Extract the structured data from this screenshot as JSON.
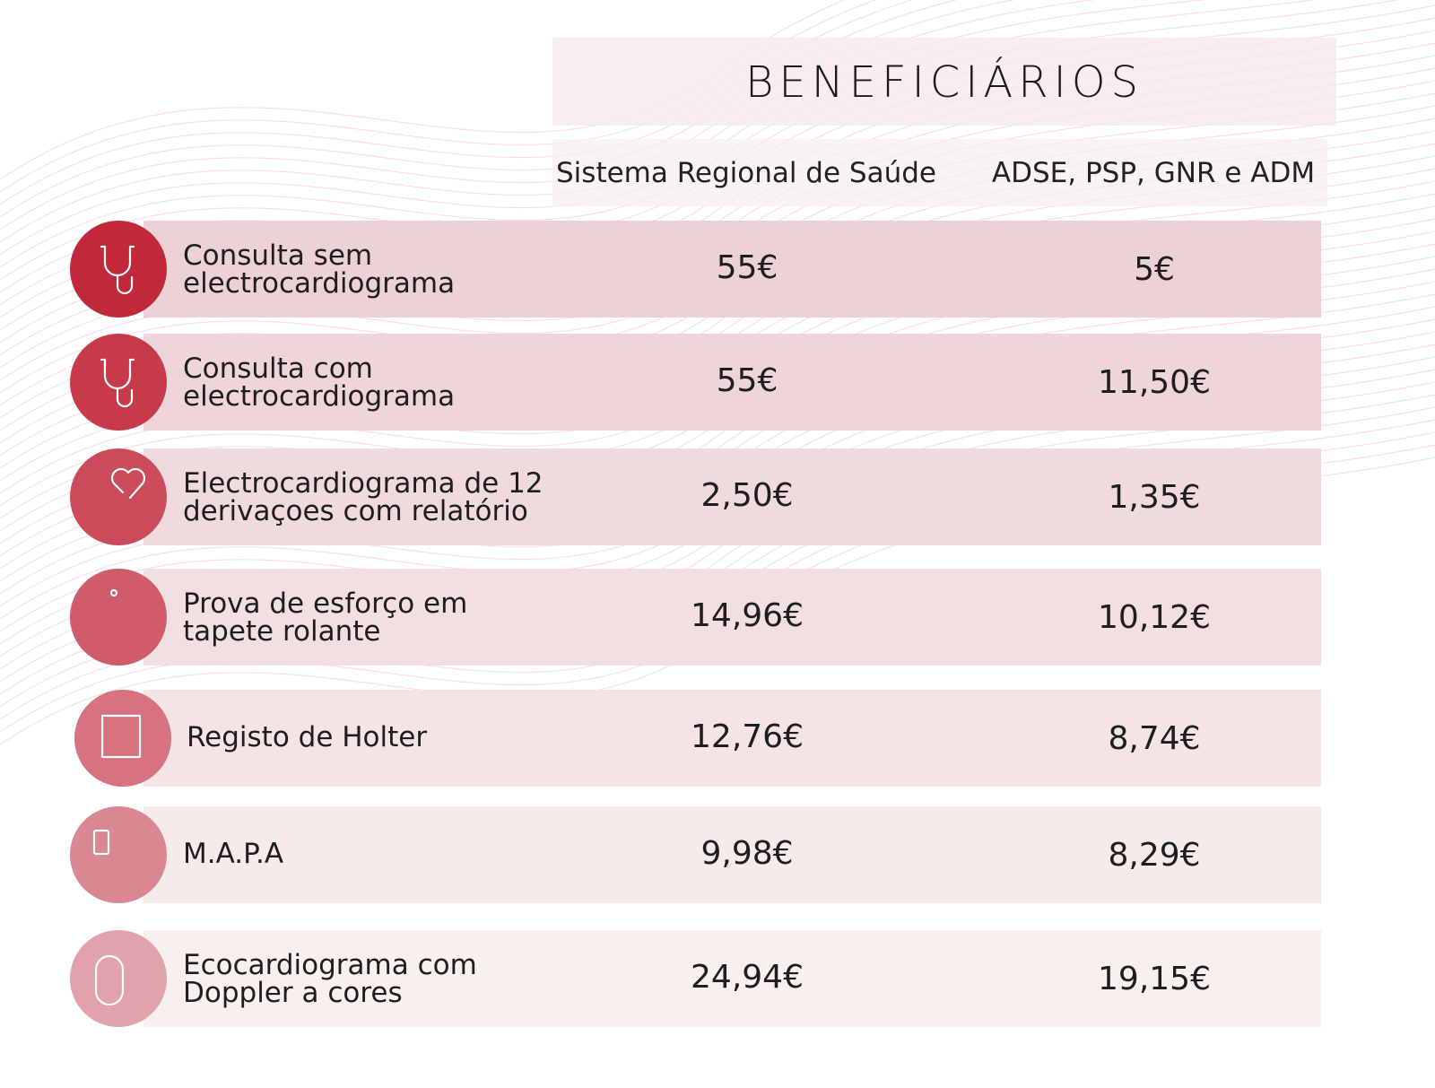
{
  "header": {
    "title": "BENEFICIÁRIOS"
  },
  "columns": [
    "Sistema Regional de Saúde",
    "ADSE, PSP, GNR e ADM"
  ],
  "rows": [
    {
      "label_line1": "Consulta sem",
      "label_line2": "electrocardiograma",
      "srs": "55€",
      "adse": "5€",
      "icon": "stethoscope-icon",
      "circle_color": "#c1293b",
      "row_color": "#ecd1d6"
    },
    {
      "label_line1": "Consulta com",
      "label_line2": "electrocardiograma",
      "srs": "55€",
      "adse": "11,50€",
      "icon": "stethoscope-icon",
      "circle_color": "#c73a4a",
      "row_color": "#eed5d9"
    },
    {
      "label_line1": "Electrocardiograma de 12",
      "label_line2": "derivaçoes com relatório",
      "srs": "2,50€",
      "adse": "1,35€",
      "icon": "ecg-monitor-heart-icon",
      "circle_color": "#cc4b5a",
      "row_color": "#f0dade"
    },
    {
      "label_line1": "Prova de esforço em",
      "label_line2": "tapete rolante",
      "srs": "14,96€",
      "adse": "10,12€",
      "icon": "treadmill-icon",
      "circle_color": "#d05c6a",
      "row_color": "#f2dfe2"
    },
    {
      "label_line1": "Registo de Holter",
      "label_line2": "",
      "srs": "12,76€",
      "adse": "8,74€",
      "icon": "holter-monitor-icon",
      "circle_color": "#d6737f",
      "row_color": "#f4e4e6"
    },
    {
      "label_line1": "M.A.P.A",
      "label_line2": "",
      "srs": "9,98€",
      "adse": "8,29€",
      "icon": "blood-pressure-monitor-icon",
      "circle_color": "#da8792",
      "row_color": "#f6eaeb"
    },
    {
      "label_line1": "Ecocardiograma com",
      "label_line2": "Doppler a cores",
      "srs": "24,94€",
      "adse": "19,15€",
      "icon": "doppler-echo-icon",
      "circle_color": "#e2a2ab",
      "row_color": "#f8efef"
    }
  ]
}
